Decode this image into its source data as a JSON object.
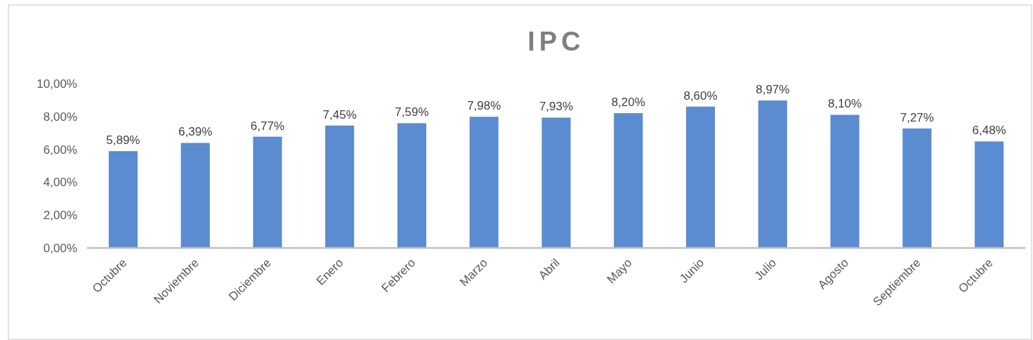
{
  "chart_data": {
    "type": "bar",
    "title": "IPC",
    "categories": [
      "Octubre",
      "Noviembre",
      "Diciembre",
      "Enero",
      "Febrero",
      "Marzo",
      "Abril",
      "Mayo",
      "Junio",
      "Julio",
      "Agosto",
      "Septiembre",
      "Octubre"
    ],
    "values": [
      5.89,
      6.39,
      6.77,
      7.45,
      7.59,
      7.98,
      7.93,
      8.2,
      8.6,
      8.97,
      8.1,
      7.27,
      6.48
    ],
    "value_labels": [
      "5,89%",
      "6,39%",
      "6,77%",
      "7,45%",
      "7,59%",
      "7,98%",
      "7,93%",
      "8,20%",
      "8,60%",
      "8,97%",
      "8,10%",
      "7,27%",
      "6,48%"
    ],
    "color": "#5b8bd0",
    "ylim": [
      0,
      10
    ],
    "yticks": [
      {
        "value": 0,
        "label": "0,00%"
      },
      {
        "value": 2,
        "label": "2,00%"
      },
      {
        "value": 4,
        "label": "4,00%"
      },
      {
        "value": 6,
        "label": "6,00%"
      },
      {
        "value": 8,
        "label": "8,00%"
      },
      {
        "value": 10,
        "label": "10,00%"
      }
    ],
    "grid": false
  }
}
